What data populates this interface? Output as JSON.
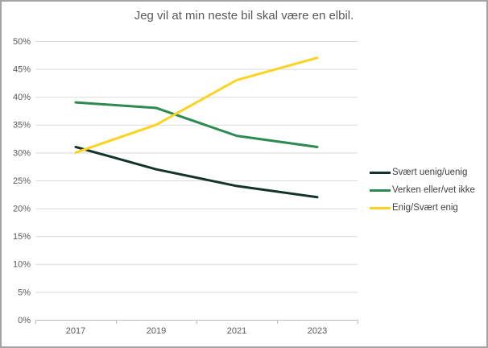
{
  "chart_data": {
    "type": "line",
    "title": "Jeg vil at min neste bil skal være en elbil.",
    "categories": [
      "2017",
      "2019",
      "2021",
      "2023"
    ],
    "series": [
      {
        "name": "Svært uenig/uenig",
        "color": "#14342a",
        "values": [
          31,
          27,
          24,
          22
        ]
      },
      {
        "name": "Verken eller/vet ikke",
        "color": "#2e8a50",
        "values": [
          39,
          38,
          33,
          31
        ]
      },
      {
        "name": "Enig/Svært enig",
        "color": "#fdd321",
        "values": [
          30,
          35,
          43,
          47
        ]
      }
    ],
    "ylim": [
      0,
      50
    ],
    "ytick_step": 5,
    "ytick_labels": [
      "0%",
      "5%",
      "10%",
      "15%",
      "20%",
      "25%",
      "30%",
      "35%",
      "40%",
      "45%",
      "50%"
    ],
    "grid": true,
    "legend_position": "right"
  },
  "colors": {
    "title_text": "#595959",
    "axis_label_text": "#595959",
    "gridline": "#d9d9d9",
    "axis_line": "#bfbfbf",
    "legend_text": "#404040",
    "frame_border": "#a3a3a3",
    "background": "#ffffff"
  }
}
